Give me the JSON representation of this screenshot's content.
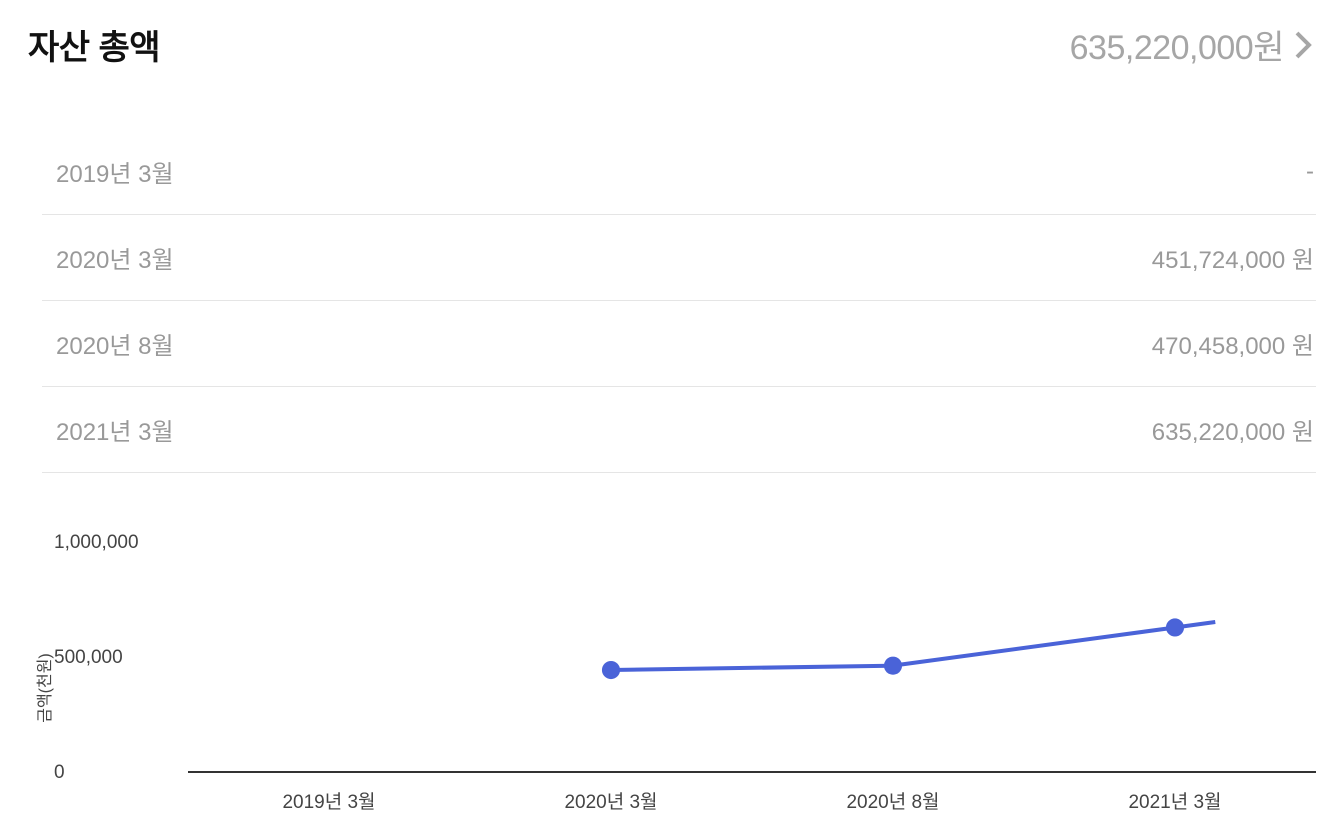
{
  "header": {
    "title": "자산 총액",
    "total_value": "635,220,000원"
  },
  "rows": [
    {
      "label": "2019년 3월",
      "value": "-"
    },
    {
      "label": "2020년 3월",
      "value": "451,724,000 원"
    },
    {
      "label": "2020년 8월",
      "value": "470,458,000 원"
    },
    {
      "label": "2021년 3월",
      "value": "635,220,000 원"
    }
  ],
  "chart": {
    "type": "line",
    "ylabel": "금액(천원)",
    "ylim": [
      0,
      1000000
    ],
    "yticks": [
      {
        "v": 0,
        "label": "0"
      },
      {
        "v": 500000,
        "label": "500,000"
      },
      {
        "v": 1000000,
        "label": "1,000,000"
      }
    ],
    "x_categories": [
      "2019년 3월",
      "2020년 3월",
      "2020년 8월",
      "2021년 3월"
    ],
    "values": [
      null,
      451724,
      470458,
      635220
    ],
    "line_color": "#4a63d8",
    "line_width": 4,
    "marker_color": "#4a63d8",
    "marker_radius": 9,
    "axis_color": "#333333",
    "tick_color": "#444444",
    "tick_fontsize": 19,
    "background_color": "#ffffff"
  }
}
